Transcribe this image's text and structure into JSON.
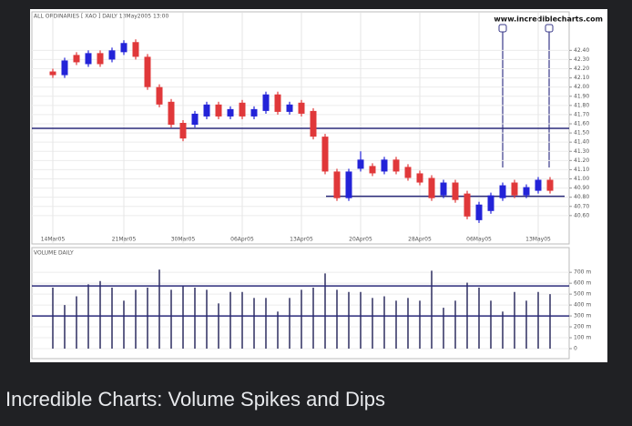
{
  "chart_data": [
    {
      "type": "candlestick",
      "title": "ALL ORDINARIES [ XAO ] DAILY 13May2005 13:00",
      "source": "www.incrediblecharts.com",
      "categories": [
        "14Mar05",
        null,
        null,
        null,
        null,
        null,
        "21Mar05",
        null,
        null,
        null,
        null,
        "30Mar05",
        null,
        null,
        null,
        null,
        "06Apr05",
        null,
        null,
        null,
        null,
        "13Apr05",
        null,
        null,
        null,
        null,
        "20Apr05",
        null,
        null,
        null,
        null,
        "28Apr05",
        null,
        null,
        null,
        null,
        "06May05",
        null,
        null,
        null,
        null,
        "13May05",
        null
      ],
      "open": [
        42.17,
        42.13,
        42.35,
        42.25,
        42.37,
        42.3,
        42.38,
        42.49,
        42.33,
        42.0,
        41.84,
        41.61,
        41.59,
        41.68,
        41.81,
        41.68,
        41.83,
        41.68,
        41.74,
        41.92,
        41.73,
        41.83,
        41.74,
        41.46,
        41.08,
        40.79,
        41.11,
        41.14,
        41.08,
        41.21,
        41.13,
        41.06,
        41.01,
        40.82,
        40.96,
        40.84,
        40.55,
        40.65,
        40.79,
        40.96,
        40.82,
        40.87,
        40.99
      ],
      "high": [
        42.2,
        42.32,
        42.38,
        42.4,
        42.4,
        42.43,
        42.51,
        42.52,
        42.36,
        42.03,
        41.87,
        41.64,
        41.74,
        41.84,
        41.84,
        41.79,
        41.86,
        41.79,
        41.95,
        41.95,
        41.84,
        41.86,
        41.77,
        41.49,
        41.11,
        41.11,
        41.3,
        41.17,
        41.24,
        41.24,
        41.16,
        41.09,
        41.04,
        40.99,
        40.99,
        40.87,
        40.75,
        40.85,
        40.96,
        40.99,
        40.94,
        41.02,
        41.02
      ],
      "low": [
        42.1,
        42.1,
        42.24,
        42.22,
        42.22,
        42.27,
        42.35,
        42.3,
        41.97,
        41.78,
        41.56,
        41.41,
        41.56,
        41.65,
        41.65,
        41.65,
        41.65,
        41.65,
        41.71,
        41.7,
        41.7,
        41.68,
        41.43,
        41.05,
        40.76,
        40.76,
        41.08,
        41.03,
        41.05,
        41.05,
        40.98,
        40.93,
        40.76,
        40.79,
        40.74,
        40.56,
        40.52,
        40.62,
        40.76,
        40.79,
        40.79,
        40.84,
        40.84
      ],
      "close": [
        42.13,
        42.29,
        42.27,
        42.37,
        42.25,
        42.4,
        42.48,
        42.33,
        42.0,
        41.81,
        41.59,
        41.44,
        41.71,
        41.81,
        41.68,
        41.76,
        41.68,
        41.76,
        41.92,
        41.73,
        41.81,
        41.71,
        41.46,
        41.08,
        40.79,
        41.08,
        41.21,
        41.06,
        41.21,
        41.08,
        41.01,
        40.96,
        40.79,
        40.96,
        40.77,
        40.59,
        40.72,
        40.82,
        40.93,
        40.82,
        40.91,
        40.99,
        40.87
      ],
      "up_color": "#2323d8",
      "down_color": "#e0383a",
      "hlines": [
        41.55,
        40.81
      ],
      "ylim": [
        40.4,
        42.8
      ],
      "yticks": [
        {
          "value": 40.6,
          "label": "40.60"
        },
        {
          "value": 40.7,
          "label": "40.70"
        },
        {
          "value": 40.8,
          "label": "40.80"
        },
        {
          "value": 40.9,
          "label": "40.90"
        },
        {
          "value": 41.0,
          "label": "41.00"
        },
        {
          "value": 41.1,
          "label": "41.10"
        },
        {
          "value": 41.2,
          "label": "41.20"
        },
        {
          "value": 41.3,
          "label": "41.30"
        },
        {
          "value": 41.4,
          "label": "41.40"
        },
        {
          "value": 41.5,
          "label": "41.50"
        },
        {
          "value": 41.6,
          "label": "41.60"
        },
        {
          "value": 41.7,
          "label": "41.70"
        },
        {
          "value": 41.8,
          "label": "41.80"
        },
        {
          "value": 41.9,
          "label": "41.90"
        },
        {
          "value": 42.0,
          "label": "42.00"
        },
        {
          "value": 42.1,
          "label": "42.10"
        },
        {
          "value": 42.2,
          "label": "42.20"
        },
        {
          "value": 42.3,
          "label": "42.30"
        },
        {
          "value": 42.4,
          "label": "42.40"
        }
      ],
      "grid": true
    },
    {
      "type": "bar",
      "title": "VOLUME DAILY",
      "values": [
        560,
        400,
        480,
        590,
        620,
        560,
        440,
        540,
        560,
        725,
        540,
        580,
        560,
        540,
        415,
        520,
        520,
        465,
        465,
        340,
        465,
        540,
        560,
        690,
        540,
        520,
        520,
        465,
        480,
        440,
        465,
        440,
        715,
        375,
        440,
        605,
        560,
        440,
        340,
        520,
        440,
        520,
        500
      ],
      "color": "#3a3a6a",
      "hlines": [
        575,
        300
      ],
      "ylim": [
        0,
        760
      ],
      "yticks": [
        0,
        {
          "value": 100,
          "label": "100 m"
        },
        {
          "value": 200,
          "label": "200 m"
        },
        {
          "value": 300,
          "label": "300 m"
        },
        {
          "value": 400,
          "label": "400 m"
        },
        {
          "value": 500,
          "label": "500 m"
        },
        {
          "value": 600,
          "label": "600 m"
        },
        {
          "value": 700,
          "label": "700 m"
        }
      ],
      "grid": true
    }
  ],
  "caption": "Incredible Charts: Volume Spikes and Dips"
}
